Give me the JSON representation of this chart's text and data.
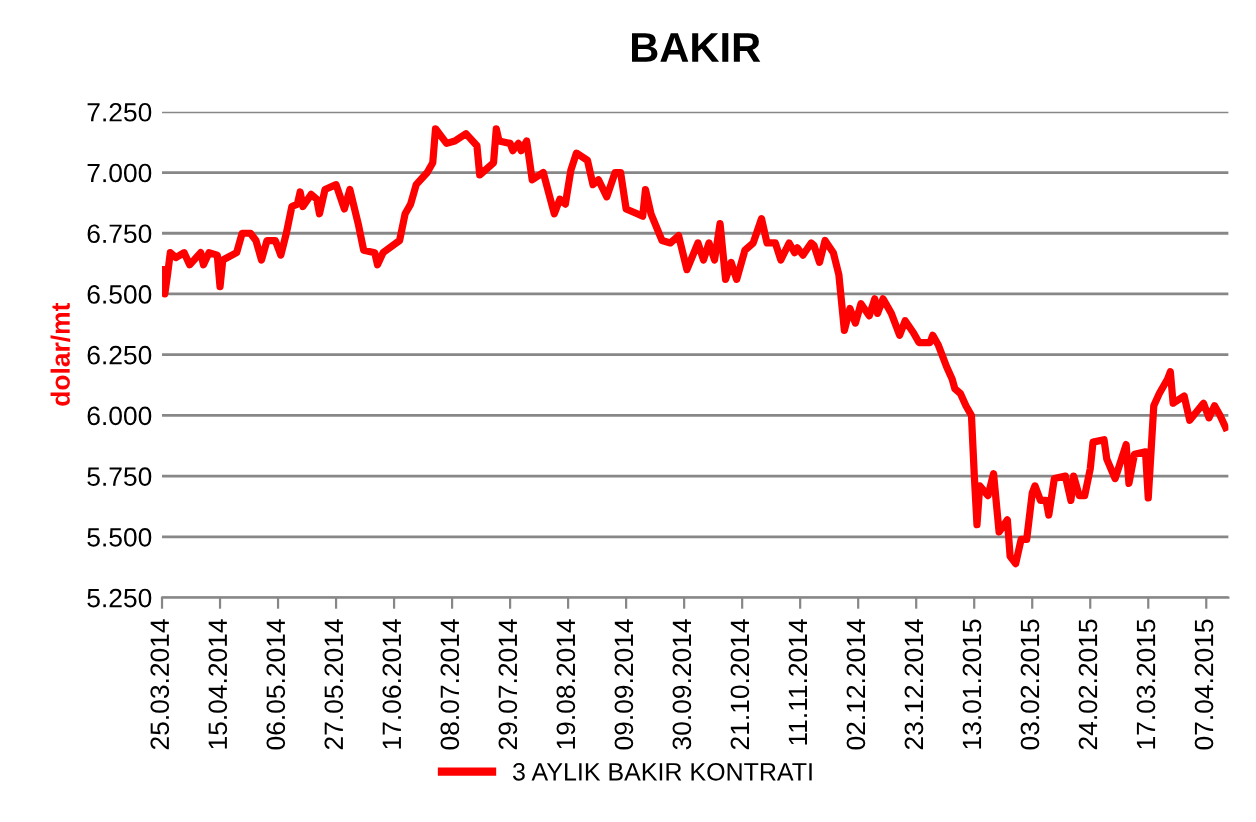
{
  "chart_data": {
    "type": "line",
    "title": "BAKIR",
    "ylabel": "dolar/mt",
    "x": [
      "2014-03-25",
      "2014-03-26",
      "2014-03-27",
      "2014-03-28",
      "2014-03-30",
      "2014-04-02",
      "2014-04-04",
      "2014-04-08",
      "2014-04-09",
      "2014-04-11",
      "2014-04-14",
      "2014-04-15",
      "2014-04-16",
      "2014-04-21",
      "2014-04-23",
      "2014-04-26",
      "2014-04-28",
      "2014-04-30",
      "2014-05-02",
      "2014-05-05",
      "2014-05-07",
      "2014-05-09",
      "2014-05-11",
      "2014-05-13",
      "2014-05-14",
      "2014-05-15",
      "2014-05-18",
      "2014-05-20",
      "2014-05-21",
      "2014-05-23",
      "2014-05-27",
      "2014-05-30",
      "2014-06-01",
      "2014-06-04",
      "2014-06-06",
      "2014-06-10",
      "2014-06-11",
      "2014-06-13",
      "2014-06-19",
      "2014-06-21",
      "2014-06-23",
      "2014-06-25",
      "2014-06-29",
      "2014-07-01",
      "2014-07-02",
      "2014-07-06",
      "2014-07-09",
      "2014-07-13",
      "2014-07-17",
      "2014-07-18",
      "2014-07-22",
      "2014-07-23",
      "2014-07-24",
      "2014-07-25",
      "2014-07-29",
      "2014-07-30",
      "2014-08-01",
      "2014-08-02",
      "2014-08-04",
      "2014-08-06",
      "2014-08-10",
      "2014-08-14",
      "2014-08-16",
      "2014-08-18",
      "2014-08-20",
      "2014-08-22",
      "2014-08-26",
      "2014-08-28",
      "2014-08-30",
      "2014-09-02",
      "2014-09-05",
      "2014-09-07",
      "2014-09-09",
      "2014-09-13",
      "2014-09-15",
      "2014-09-16",
      "2014-09-18",
      "2014-09-22",
      "2014-09-25",
      "2014-09-28",
      "2014-10-01",
      "2014-10-05",
      "2014-10-07",
      "2014-10-09",
      "2014-10-11",
      "2014-10-13",
      "2014-10-15",
      "2014-10-17",
      "2014-10-19",
      "2014-10-22",
      "2014-10-25",
      "2014-10-28",
      "2014-10-30",
      "2014-11-02",
      "2014-11-04",
      "2014-11-07",
      "2014-11-09",
      "2014-11-10",
      "2014-11-12",
      "2014-11-15",
      "2014-11-16",
      "2014-11-18",
      "2014-11-20",
      "2014-11-23",
      "2014-11-25",
      "2014-11-27",
      "2014-11-29",
      "2014-12-01",
      "2014-12-03",
      "2014-12-06",
      "2014-12-08",
      "2014-12-09",
      "2014-12-11",
      "2014-12-14",
      "2014-12-17",
      "2014-12-19",
      "2014-12-22",
      "2014-12-24",
      "2014-12-28",
      "2014-12-29",
      "2014-12-31",
      "2015-01-03",
      "2015-01-05",
      "2015-01-06",
      "2015-01-08",
      "2015-01-10",
      "2015-01-12",
      "2015-01-13",
      "2015-01-14",
      "2015-01-15",
      "2015-01-18",
      "2015-01-20",
      "2015-01-22",
      "2015-01-25",
      "2015-01-26",
      "2015-01-28",
      "2015-01-30",
      "2015-02-01",
      "2015-02-03",
      "2015-02-04",
      "2015-02-06",
      "2015-02-08",
      "2015-02-09",
      "2015-02-11",
      "2015-02-15",
      "2015-02-17",
      "2015-02-18",
      "2015-02-20",
      "2015-02-22",
      "2015-02-24",
      "2015-02-25",
      "2015-03-01",
      "2015-03-02",
      "2015-03-05",
      "2015-03-09",
      "2015-03-10",
      "2015-03-12",
      "2015-03-16",
      "2015-03-17",
      "2015-03-19",
      "2015-03-21",
      "2015-03-24",
      "2015-03-25",
      "2015-03-26",
      "2015-03-30",
      "2015-04-01",
      "2015-04-06",
      "2015-04-08",
      "2015-04-10",
      "2015-04-12",
      "2015-04-14"
    ],
    "series": [
      {
        "name": "3 AYLIK BAKIR KONTRATI",
        "color": "#ff0000",
        "values": [
          6600,
          6500,
          6580,
          6670,
          6650,
          6670,
          6620,
          6670,
          6620,
          6670,
          6660,
          6530,
          6640,
          6670,
          6750,
          6750,
          6720,
          6640,
          6720,
          6720,
          6660,
          6750,
          6860,
          6870,
          6920,
          6860,
          6910,
          6890,
          6830,
          6930,
          6950,
          6850,
          6930,
          6790,
          6680,
          6670,
          6620,
          6670,
          6720,
          6830,
          6870,
          6950,
          7000,
          7040,
          7180,
          7120,
          7130,
          7160,
          7110,
          6990,
          7030,
          7040,
          7180,
          7130,
          7120,
          7090,
          7120,
          7090,
          7130,
          6970,
          7000,
          6830,
          6890,
          6870,
          7010,
          7080,
          7050,
          6950,
          6970,
          6900,
          7000,
          7000,
          6850,
          6830,
          6820,
          6930,
          6830,
          6720,
          6710,
          6740,
          6600,
          6710,
          6640,
          6710,
          6640,
          6790,
          6560,
          6630,
          6560,
          6680,
          6710,
          6810,
          6710,
          6710,
          6640,
          6710,
          6670,
          6690,
          6660,
          6710,
          6700,
          6630,
          6720,
          6670,
          6580,
          6350,
          6440,
          6380,
          6460,
          6410,
          6480,
          6420,
          6480,
          6420,
          6330,
          6390,
          6340,
          6300,
          6300,
          6330,
          6290,
          6200,
          6150,
          6110,
          6090,
          6040,
          6000,
          5760,
          5550,
          5710,
          5670,
          5760,
          5520,
          5570,
          5420,
          5390,
          5490,
          5490,
          5680,
          5710,
          5650,
          5650,
          5590,
          5740,
          5750,
          5650,
          5750,
          5670,
          5670,
          5780,
          5890,
          5900,
          5820,
          5740,
          5880,
          5720,
          5840,
          5850,
          5660,
          6040,
          6090,
          6150,
          6180,
          6050,
          6080,
          5980,
          6050,
          5990,
          6040,
          6000,
          5950
        ]
      }
    ],
    "xlim": [
      "2014-03-25",
      "2015-04-15"
    ],
    "xticks": [
      {
        "value": "2014-03-25",
        "label": "25.03.2014"
      },
      {
        "value": "2014-04-15",
        "label": "15.04.2014"
      },
      {
        "value": "2014-05-06",
        "label": "06.05.2014"
      },
      {
        "value": "2014-05-27",
        "label": "27.05.2014"
      },
      {
        "value": "2014-06-17",
        "label": "17.06.2014"
      },
      {
        "value": "2014-07-08",
        "label": "08.07.2014"
      },
      {
        "value": "2014-07-29",
        "label": "29.07.2014"
      },
      {
        "value": "2014-08-19",
        "label": "19.08.2014"
      },
      {
        "value": "2014-09-09",
        "label": "09.09.2014"
      },
      {
        "value": "2014-09-30",
        "label": "30.09.2014"
      },
      {
        "value": "2014-10-21",
        "label": "21.10.2014"
      },
      {
        "value": "2014-11-11",
        "label": "11.11.2014"
      },
      {
        "value": "2014-12-02",
        "label": "02.12.2014"
      },
      {
        "value": "2014-12-23",
        "label": "23.12.2014"
      },
      {
        "value": "2015-01-13",
        "label": "13.01.2015"
      },
      {
        "value": "2015-02-03",
        "label": "03.02.2015"
      },
      {
        "value": "2015-02-24",
        "label": "24.02.2015"
      },
      {
        "value": "2015-03-17",
        "label": "17.03.2015"
      },
      {
        "value": "2015-04-07",
        "label": "07.04.2015"
      }
    ],
    "ylim": [
      5250,
      7250
    ],
    "yticks": [
      {
        "value": 5250,
        "label": "5.250"
      },
      {
        "value": 5500,
        "label": "5.500"
      },
      {
        "value": 5750,
        "label": "5.750"
      },
      {
        "value": 6000,
        "label": "6.000"
      },
      {
        "value": 6250,
        "label": "6.250"
      },
      {
        "value": 6500,
        "label": "6.500"
      },
      {
        "value": 6750,
        "label": "6.750"
      },
      {
        "value": 7000,
        "label": "7.000"
      },
      {
        "value": 7250,
        "label": "7.250"
      }
    ],
    "grid": "y",
    "legend": "bottom",
    "marker": "none",
    "line_style": "solid"
  }
}
